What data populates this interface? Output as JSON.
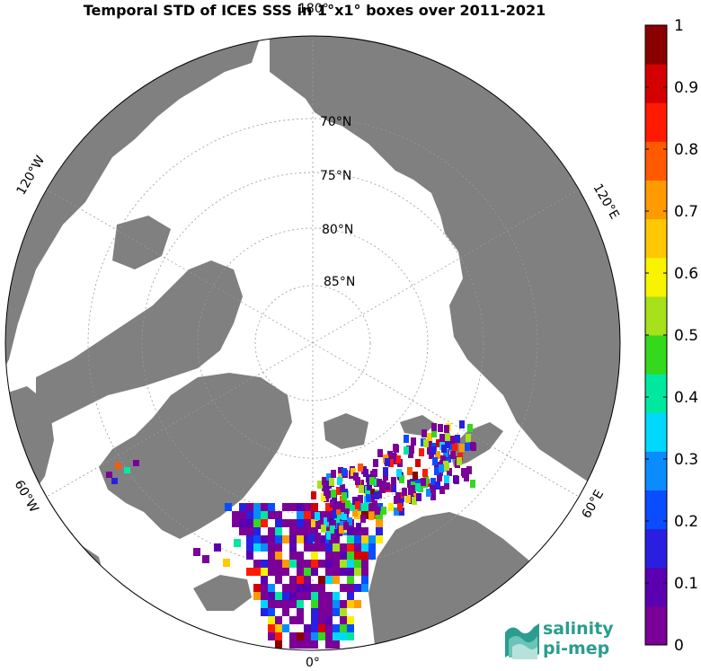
{
  "title": "Temporal STD of ICES SSS in 1°x1° boxes over 2011-2021",
  "map": {
    "projection": "north-polar-stereographic",
    "lat_labels": [
      "70",
      "75",
      "80",
      "85"
    ],
    "lat_suffix": "°N",
    "lon_labels": {
      "top": "180°",
      "bottom": "0°",
      "upper_left": "120°W",
      "upper_right": "120°E",
      "lower_left": "60°W",
      "lower_right": "60°E"
    },
    "colors": {
      "land": "#808080",
      "ocean": "#ffffff",
      "sea_ice_region": "#ffffff",
      "graticule": "#aaaaaa"
    }
  },
  "colorbar": {
    "min": 0,
    "max": 1,
    "ticks": [
      "0",
      "0.1",
      "0.2",
      "0.3",
      "0.4",
      "0.5",
      "0.6",
      "0.7",
      "0.8",
      "0.9",
      "1"
    ],
    "colormap": "jet-like",
    "colors": [
      "#7a0097",
      "#5a00b0",
      "#2a1fe0",
      "#0a4cff",
      "#0a8cff",
      "#00d8ff",
      "#00e8a0",
      "#34d81c",
      "#a8e01a",
      "#f8f400",
      "#ffc800",
      "#ff9a00",
      "#ff5a00",
      "#ff1a00",
      "#d40000",
      "#8a0000"
    ]
  },
  "logo": {
    "line1": "salinity",
    "line2": "pi-mep",
    "color": "#2a9d8f"
  }
}
